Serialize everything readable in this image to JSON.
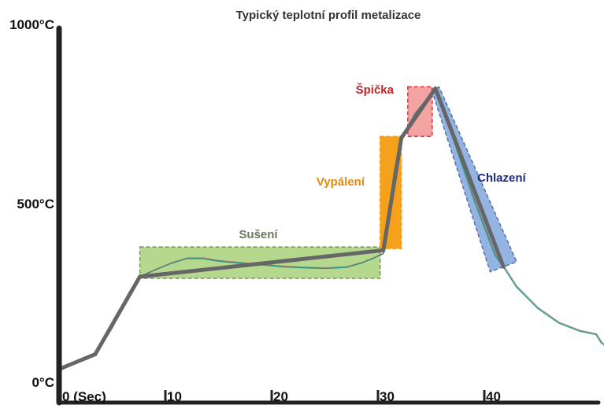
{
  "chart_data": {
    "type": "line",
    "title": "Typický teplotní profil metalizace",
    "xlabel": "",
    "ylabel": "",
    "xlim": [
      0,
      52
    ],
    "ylim": [
      0,
      1000
    ],
    "x_ticks": [
      {
        "value": 0,
        "label": "0 (Sec)"
      },
      {
        "value": 10,
        "label": "10"
      },
      {
        "value": 20,
        "label": "20"
      },
      {
        "value": 30,
        "label": "30"
      },
      {
        "value": 40,
        "label": "40"
      }
    ],
    "y_ticks": [
      {
        "value": 0,
        "label": "0°C"
      },
      {
        "value": 500,
        "label": "500°C"
      },
      {
        "value": 1000,
        "label": "1000°C"
      }
    ],
    "grid": false,
    "series": [
      {
        "name": "",
        "style": "ideal-profile",
        "color": "#666666",
        "x": [
          0,
          3.4,
          7.6,
          30.5,
          32.2,
          35.4,
          41.8
        ],
        "y": [
          25,
          70,
          305,
          385,
          725,
          875,
          335
        ]
      },
      {
        "name": "",
        "style": "measured",
        "color": "#2e9c8e",
        "x": [
          0,
          1,
          2,
          3.4,
          5,
          6.5,
          7.6,
          9,
          10.5,
          12,
          13.5,
          15,
          17,
          19,
          21,
          23,
          25,
          27,
          28.5,
          29.5,
          30.5,
          31,
          31.5,
          32.2,
          33.5,
          35.4,
          37,
          39,
          41,
          41.8,
          43,
          45,
          47,
          49,
          50.5,
          51,
          52
        ],
        "y": [
          20,
          35,
          50,
          68,
          150,
          250,
          305,
          325,
          345,
          360,
          360,
          352,
          346,
          341,
          335,
          332,
          330,
          333,
          347,
          360,
          375,
          480,
          620,
          725,
          800,
          875,
          730,
          540,
          370,
          335,
          275,
          210,
          165,
          140,
          130,
          105,
          80
        ]
      }
    ],
    "zones": [
      {
        "name": "Sušení",
        "color": "#b5d88f",
        "border": "#7a8f5a",
        "label_color": "#6b7a5c",
        "x": [
          7.6,
          30.2
        ],
        "y": [
          300,
          395
        ]
      },
      {
        "name": "Vypálení",
        "color": "#f6a11c",
        "border": "#f6a11c",
        "label_color": "#e08a0e",
        "x": [
          30.2,
          32.2
        ],
        "y": [
          390,
          730
        ]
      },
      {
        "name": "Špička",
        "color": "#f4a3a3",
        "border": "#e0303a",
        "label_color": "#c0242a",
        "x": [
          32.8,
          35.1
        ],
        "y": [
          730,
          880
        ]
      },
      {
        "name": "Chlazení",
        "color": "#93b4e0",
        "border": "#5a6db0",
        "label_color": "#1c2a7a"
      }
    ]
  }
}
